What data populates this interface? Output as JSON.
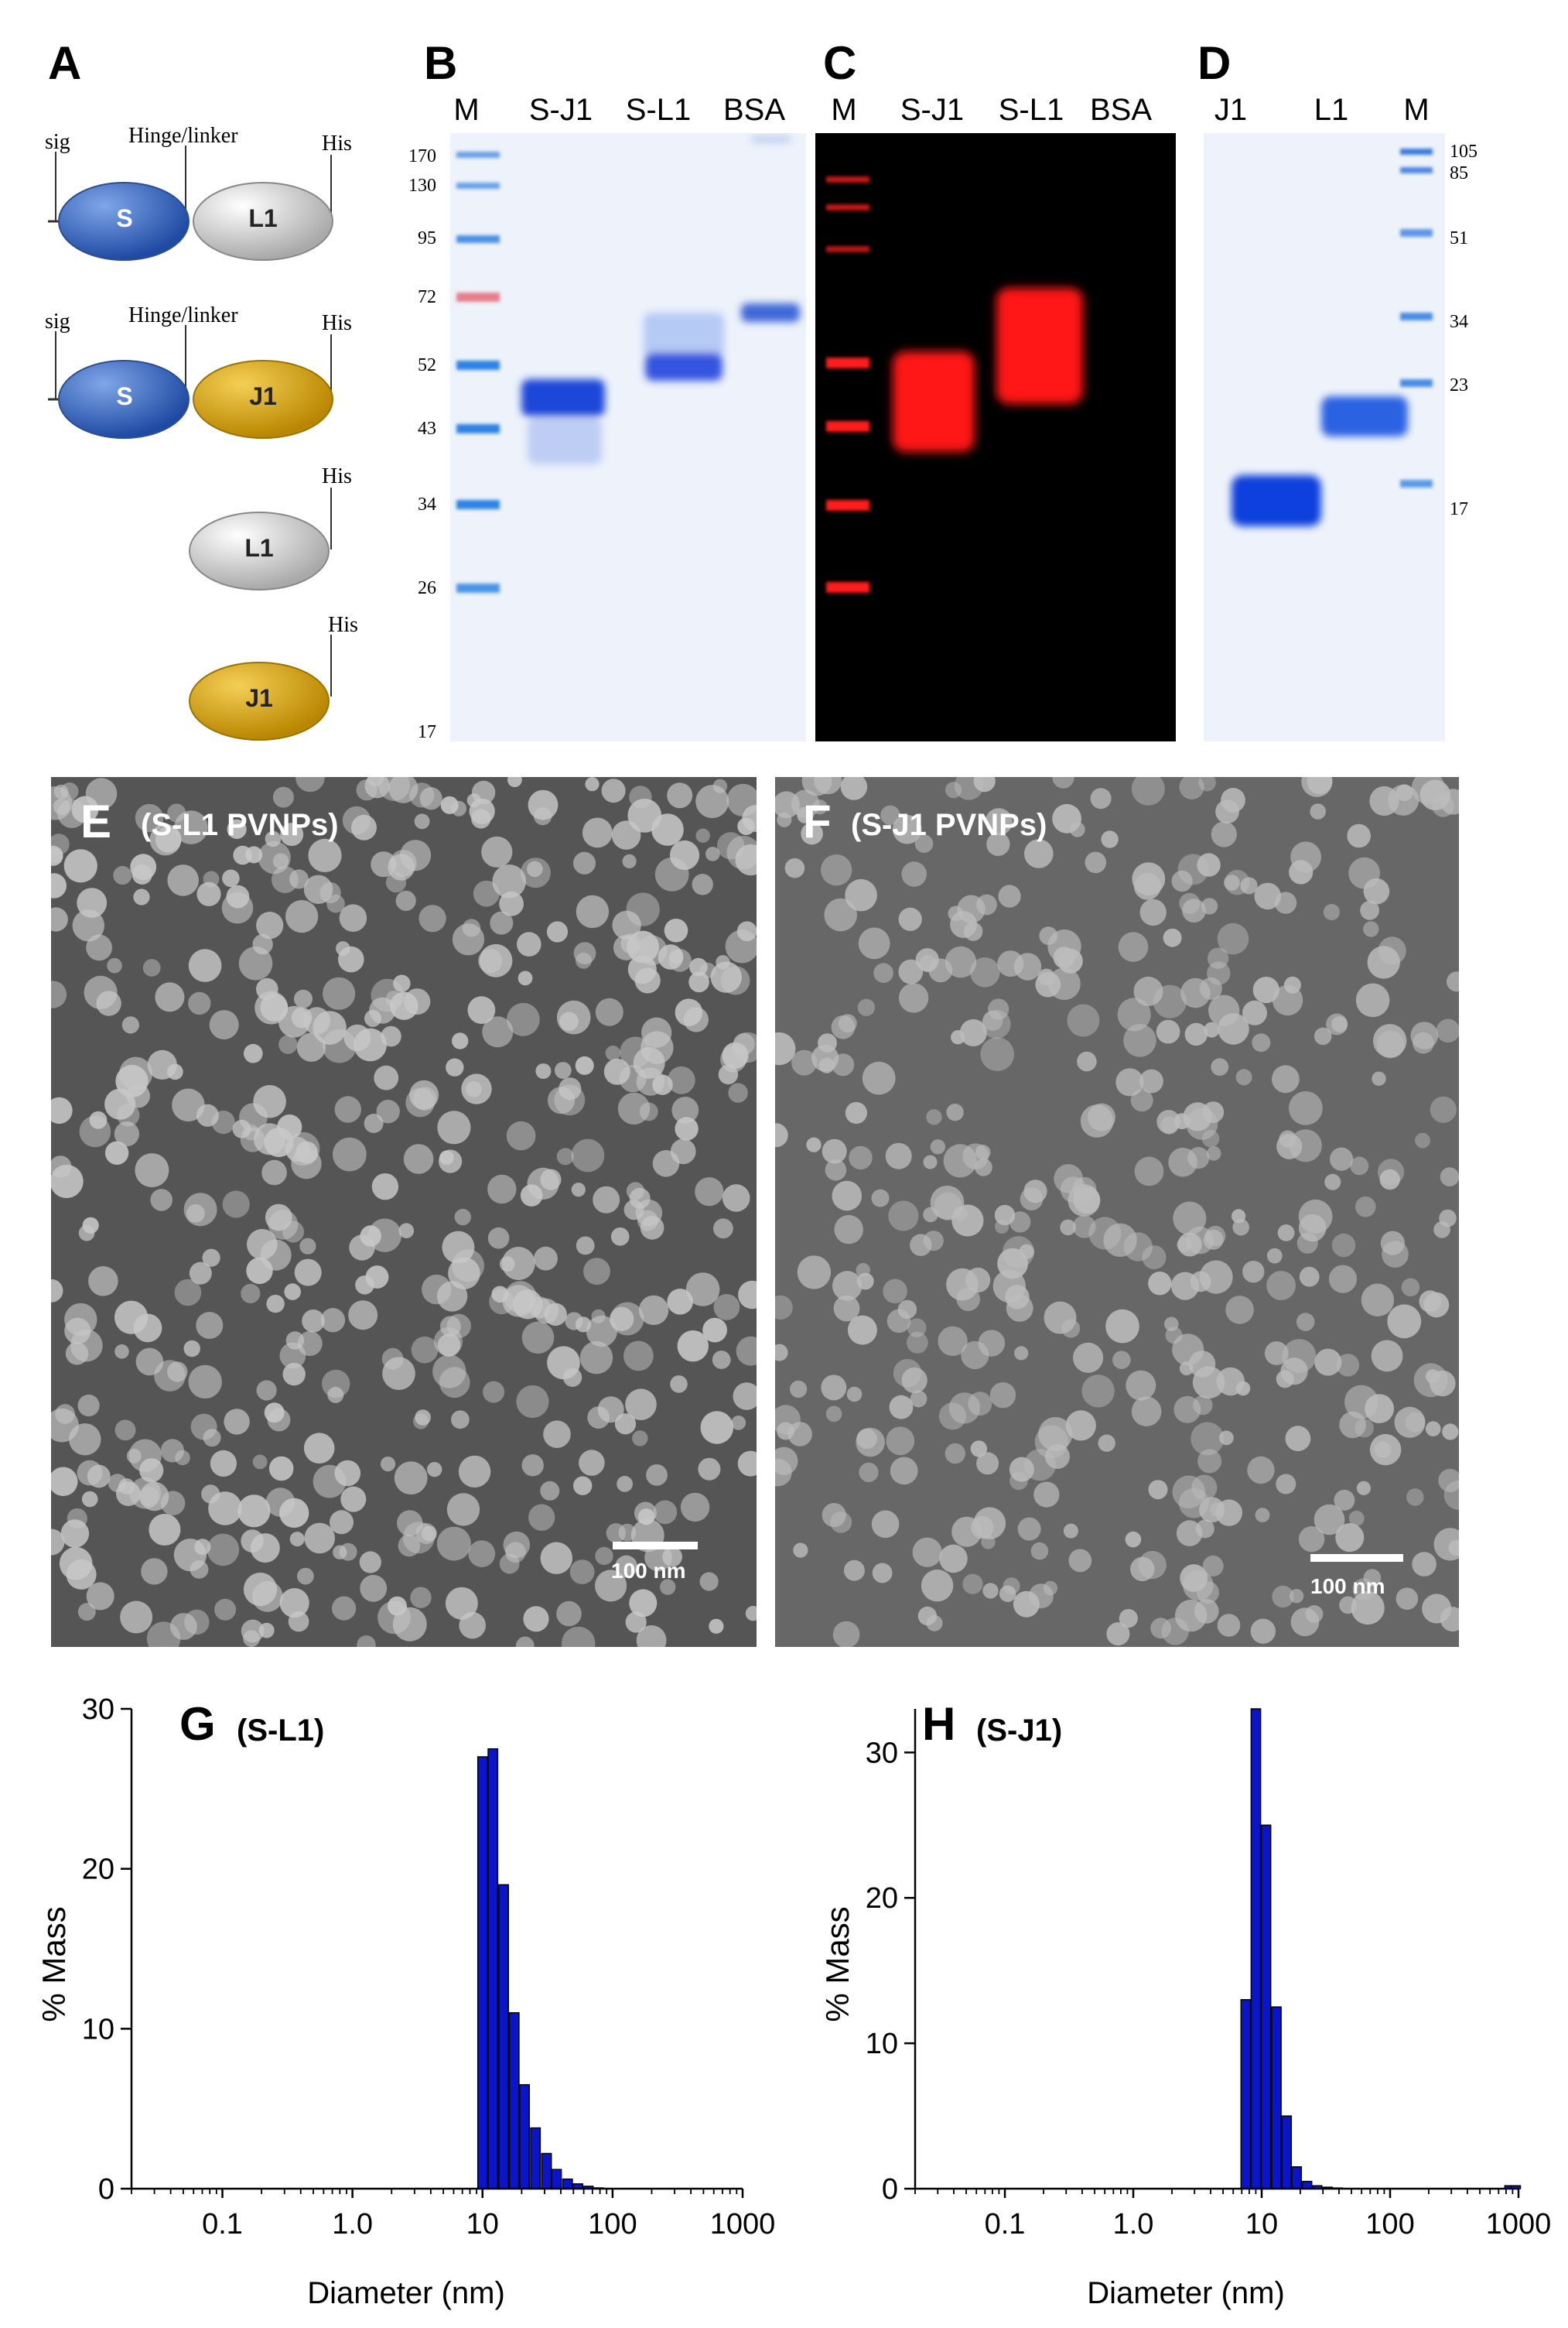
{
  "panels": {
    "A": {
      "label": "A",
      "constructs": [
        {
          "domains": [
            "S",
            "L1"
          ],
          "sig_label": "sig",
          "linker_label": "Hinge/linker",
          "tag_label": "His"
        },
        {
          "domains": [
            "S",
            "J1"
          ],
          "sig_label": "sig",
          "linker_label": "Hinge/linker",
          "tag_label": "His"
        },
        {
          "domains": [
            "L1"
          ],
          "tag_label": "His"
        },
        {
          "domains": [
            "J1"
          ],
          "tag_label": "His"
        }
      ],
      "colors": {
        "S": "#3a67c4",
        "L1": "#cfcfcf",
        "J1": "#d4a00d"
      }
    },
    "B": {
      "label": "B",
      "lanes": [
        "M",
        "S-J1",
        "S-L1",
        "BSA"
      ],
      "marker_sizes": [
        "170",
        "130",
        "95",
        "72",
        "52",
        "43",
        "34",
        "26",
        "17"
      ]
    },
    "C": {
      "label": "C",
      "lanes": [
        "M",
        "S-J1",
        "S-L1",
        "BSA"
      ]
    },
    "D": {
      "label": "D",
      "lanes": [
        "J1",
        "L1",
        "M"
      ],
      "marker_sizes": [
        "105",
        "85",
        "51",
        "34",
        "23",
        "17"
      ]
    },
    "E": {
      "label": "E",
      "title": "(S-L1 PVNPs)",
      "scale_bar": "100 nm"
    },
    "F": {
      "label": "F",
      "title": "(S-J1 PVNPs)",
      "scale_bar": "100 nm"
    },
    "G": {
      "label": "G",
      "title": "(S-L1)"
    },
    "H": {
      "label": "H",
      "title": "(S-J1)"
    }
  },
  "chart_data": [
    {
      "type": "bar",
      "panel": "G",
      "title": "(S-L1)",
      "xlabel": "Diameter (nm)",
      "ylabel": "% Mass",
      "x_scale": "log",
      "xlim": [
        0.02,
        1000
      ],
      "ylim": [
        0,
        30
      ],
      "x_ticks": [
        "0.1",
        "1.0",
        "10",
        "100",
        "1000"
      ],
      "y_ticks": [
        "0",
        "10",
        "20",
        "30"
      ],
      "bar_color": "#0a14c8",
      "x": [
        10,
        12,
        14.5,
        17.5,
        21,
        25.5,
        31,
        37,
        45,
        54,
        65,
        78
      ],
      "values": [
        27,
        27.5,
        19,
        11,
        6.5,
        3.8,
        2.2,
        1.2,
        0.6,
        0.3,
        0.15,
        0.05
      ]
    },
    {
      "type": "bar",
      "panel": "H",
      "title": "(S-J1)",
      "xlabel": "Diameter (nm)",
      "ylabel": "% Mass",
      "x_scale": "log",
      "xlim": [
        0.02,
        1000
      ],
      "ylim": [
        0,
        33
      ],
      "x_ticks": [
        "0.1",
        "1.0",
        "10",
        "100",
        "1000"
      ],
      "y_ticks": [
        "0",
        "10",
        "20",
        "30"
      ],
      "bar_color": "#0a14c8",
      "x": [
        7.5,
        9,
        10.8,
        13,
        15.6,
        18.7,
        22.5,
        27,
        32.5,
        39,
        850,
        950
      ],
      "values": [
        13,
        33,
        25,
        12.5,
        5,
        1.5,
        0.5,
        0.2,
        0.1,
        0.05,
        0.2,
        0.2
      ]
    }
  ]
}
